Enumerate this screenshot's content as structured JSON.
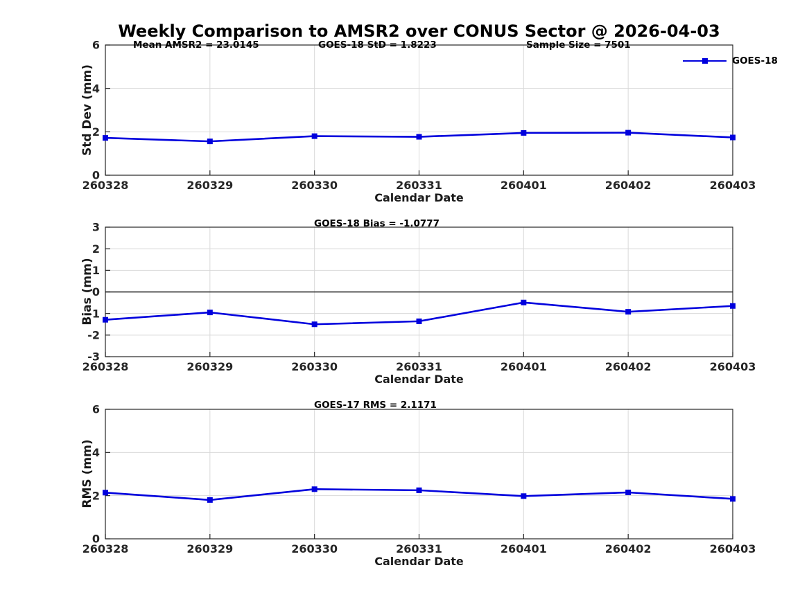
{
  "title": "Weekly Comparison to AMSR2 over CONUS Sector @ 2026-04-03",
  "legend": {
    "label": "GOES-18"
  },
  "stats": {
    "mean_amsr2": 23.0145,
    "goes18_std": 1.8223,
    "sample_size": 7501,
    "goes18_bias": -1.0777,
    "goes17_rms": 2.1171
  },
  "colors": {
    "series_blue": "#0000dd",
    "grid": "#d9d9d9",
    "axis": "#262626",
    "zero_line": "#3f3f3f",
    "text": "#1a1a1a"
  },
  "chart_data": [
    {
      "type": "line",
      "annotations": [
        "Mean AMSR2 = 23.0145",
        "GOES-18 StD = 1.8223",
        "Sample Size = 7501"
      ],
      "ylabel": "Std Dev (mm)",
      "xlabel": "Calendar Date",
      "ylim": [
        0,
        6
      ],
      "yticks": [
        0,
        2,
        4,
        6
      ],
      "grid": true,
      "legend_position": "northeast-outside",
      "categories": [
        "260328",
        "260329",
        "260330",
        "260331",
        "260401",
        "260402",
        "260403"
      ],
      "series": [
        {
          "name": "GOES-18",
          "marker": "square",
          "values": [
            1.72,
            1.56,
            1.8,
            1.77,
            1.95,
            1.96,
            1.74
          ]
        }
      ]
    },
    {
      "type": "line",
      "title": "GOES-18 Bias  = -1.0777",
      "ylabel": "Bias (mm)",
      "xlabel": "Calendar Date",
      "ylim": [
        -3,
        3
      ],
      "yticks": [
        -3,
        -2,
        -1,
        0,
        1,
        2,
        3
      ],
      "zero_line": 0,
      "grid": true,
      "categories": [
        "260328",
        "260329",
        "260330",
        "260331",
        "260401",
        "260402",
        "260403"
      ],
      "series": [
        {
          "name": "GOES-18",
          "marker": "square",
          "values": [
            -1.29,
            -0.95,
            -1.5,
            -1.36,
            -0.49,
            -0.92,
            -0.65
          ]
        }
      ]
    },
    {
      "type": "line",
      "title": "GOES-17 RMS = 2.1171",
      "ylabel": "RMS (mm)",
      "xlabel": "Calendar Date",
      "ylim": [
        0,
        6
      ],
      "yticks": [
        0,
        2,
        4,
        6
      ],
      "grid": true,
      "categories": [
        "260328",
        "260329",
        "260330",
        "260331",
        "260401",
        "260402",
        "260403"
      ],
      "series": [
        {
          "name": "GOES-18",
          "marker": "square",
          "values": [
            2.14,
            1.8,
            2.3,
            2.25,
            1.98,
            2.15,
            1.85
          ]
        }
      ]
    }
  ]
}
